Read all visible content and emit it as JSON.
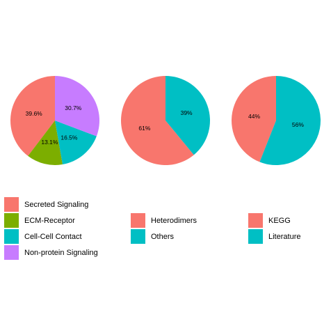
{
  "chart_data": [
    {
      "type": "pie",
      "slices": [
        {
          "label": "Secreted Signaling",
          "value": 39.6,
          "text": "39.6%",
          "color": "#F8766D"
        },
        {
          "label": "ECM-Receptor",
          "value": 13.1,
          "text": "13.1%",
          "color": "#7CAE00"
        },
        {
          "label": "Cell-Cell Contact",
          "value": 16.5,
          "text": "16.5%",
          "color": "#00BFC4"
        },
        {
          "label": "Non-protein Signaling",
          "value": 30.7,
          "text": "30.7%",
          "color": "#C77CFF"
        }
      ]
    },
    {
      "type": "pie",
      "slices": [
        {
          "label": "Heterodimers",
          "value": 61,
          "text": "61%",
          "color": "#F8766D"
        },
        {
          "label": "Others",
          "value": 39,
          "text": "39%",
          "color": "#00BFC4"
        }
      ]
    },
    {
      "type": "pie",
      "slices": [
        {
          "label": "KEGG",
          "value": 44,
          "text": "44%",
          "color": "#F8766D"
        },
        {
          "label": "Literature",
          "value": 56,
          "text": "56%",
          "color": "#00BFC4"
        }
      ]
    }
  ],
  "legends": [
    {
      "entries": [
        {
          "label": "Secreted Signaling",
          "color": "#F8766D"
        },
        {
          "label": "ECM-Receptor",
          "color": "#7CAE00"
        },
        {
          "label": "Cell-Cell Contact",
          "color": "#00BFC4"
        },
        {
          "label": "Non-protein Signaling",
          "color": "#C77CFF"
        }
      ]
    },
    {
      "entries": [
        {
          "label": "Heterodimers",
          "color": "#F8766D"
        },
        {
          "label": "Others",
          "color": "#00BFC4"
        }
      ]
    },
    {
      "entries": [
        {
          "label": "KEGG",
          "color": "#F8766D"
        },
        {
          "label": "Literature",
          "color": "#00BFC4"
        }
      ]
    }
  ]
}
